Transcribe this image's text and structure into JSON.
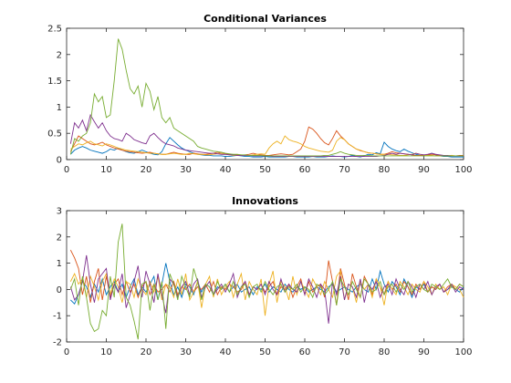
{
  "chart_data": [
    {
      "type": "line",
      "title": "Conditional Variances",
      "xlim": [
        0,
        100
      ],
      "ylim": [
        0,
        2.5
      ],
      "xticks": [
        0,
        10,
        20,
        30,
        40,
        50,
        60,
        70,
        80,
        90,
        100
      ],
      "yticks": [
        0,
        0.5,
        1,
        1.5,
        2,
        2.5
      ],
      "xtick_labels": [
        "0",
        "10",
        "20",
        "30",
        "40",
        "50",
        "60",
        "70",
        "80",
        "90",
        "100"
      ],
      "ytick_labels": [
        "0",
        "0.5",
        "1",
        "1.5",
        "2",
        "2.5"
      ],
      "x_step": 1,
      "series": [
        {
          "color": "#0072BD",
          "values": [
            0.1,
            0.18,
            0.22,
            0.25,
            0.22,
            0.18,
            0.16,
            0.14,
            0.12,
            0.15,
            0.2,
            0.18,
            0.22,
            0.18,
            0.15,
            0.13,
            0.12,
            0.15,
            0.18,
            0.15,
            0.12,
            0.1,
            0.09,
            0.15,
            0.3,
            0.42,
            0.35,
            0.28,
            0.22,
            0.18,
            0.15,
            0.12,
            0.1,
            0.09,
            0.08,
            0.08,
            0.07,
            0.07,
            0.07,
            0.06,
            0.06,
            0.07,
            0.08,
            0.07,
            0.06,
            0.06,
            0.05,
            0.05,
            0.05,
            0.06,
            0.05,
            0.05,
            0.05,
            0.05,
            0.05,
            0.06,
            0.06,
            0.05,
            0.05,
            0.05,
            0.05,
            0.06,
            0.05,
            0.05,
            0.05,
            0.06,
            0.07,
            0.06,
            0.06,
            0.05,
            0.06,
            0.08,
            0.06,
            0.05,
            0.07,
            0.1,
            0.09,
            0.13,
            0.11,
            0.33,
            0.25,
            0.2,
            0.17,
            0.15,
            0.2,
            0.16,
            0.13,
            0.1,
            0.08,
            0.07,
            0.09,
            0.12,
            0.09,
            0.07,
            0.06,
            0.06,
            0.05,
            0.05,
            0.05,
            0.05
          ]
        },
        {
          "color": "#D95319",
          "values": [
            0.15,
            0.3,
            0.45,
            0.4,
            0.35,
            0.3,
            0.28,
            0.3,
            0.33,
            0.28,
            0.25,
            0.22,
            0.2,
            0.18,
            0.16,
            0.15,
            0.14,
            0.13,
            0.12,
            0.13,
            0.14,
            0.12,
            0.11,
            0.1,
            0.1,
            0.12,
            0.14,
            0.12,
            0.11,
            0.1,
            0.1,
            0.12,
            0.11,
            0.1,
            0.1,
            0.11,
            0.12,
            0.14,
            0.12,
            0.11,
            0.1,
            0.09,
            0.09,
            0.08,
            0.09,
            0.1,
            0.12,
            0.1,
            0.09,
            0.08,
            0.08,
            0.09,
            0.1,
            0.11,
            0.1,
            0.09,
            0.1,
            0.15,
            0.2,
            0.35,
            0.62,
            0.58,
            0.5,
            0.4,
            0.32,
            0.28,
            0.4,
            0.55,
            0.45,
            0.38,
            0.3,
            0.25,
            0.2,
            0.17,
            0.15,
            0.13,
            0.12,
            0.11,
            0.1,
            0.1,
            0.12,
            0.15,
            0.13,
            0.12,
            0.11,
            0.1,
            0.09,
            0.08,
            0.08,
            0.08,
            0.09,
            0.1,
            0.09,
            0.08,
            0.08,
            0.07,
            0.07,
            0.07,
            0.08,
            0.08
          ]
        },
        {
          "color": "#EDB120",
          "values": [
            0.2,
            0.25,
            0.3,
            0.28,
            0.32,
            0.35,
            0.3,
            0.28,
            0.26,
            0.3,
            0.28,
            0.25,
            0.22,
            0.2,
            0.18,
            0.17,
            0.16,
            0.15,
            0.14,
            0.13,
            0.12,
            0.12,
            0.11,
            0.1,
            0.1,
            0.11,
            0.12,
            0.11,
            0.1,
            0.1,
            0.12,
            0.11,
            0.1,
            0.1,
            0.09,
            0.09,
            0.1,
            0.11,
            0.12,
            0.1,
            0.09,
            0.08,
            0.08,
            0.09,
            0.08,
            0.08,
            0.09,
            0.1,
            0.11,
            0.1,
            0.22,
            0.3,
            0.35,
            0.3,
            0.45,
            0.38,
            0.35,
            0.33,
            0.3,
            0.25,
            0.22,
            0.2,
            0.18,
            0.16,
            0.15,
            0.14,
            0.18,
            0.35,
            0.42,
            0.38,
            0.3,
            0.25,
            0.2,
            0.18,
            0.15,
            0.13,
            0.12,
            0.11,
            0.1,
            0.1,
            0.1,
            0.09,
            0.09,
            0.08,
            0.08,
            0.09,
            0.1,
            0.12,
            0.1,
            0.09,
            0.08,
            0.08,
            0.07,
            0.07,
            0.07,
            0.07,
            0.08,
            0.07,
            0.07,
            0.07
          ]
        },
        {
          "color": "#7E2F8E",
          "values": [
            0.3,
            0.7,
            0.6,
            0.75,
            0.55,
            0.85,
            0.72,
            0.6,
            0.7,
            0.55,
            0.45,
            0.4,
            0.38,
            0.35,
            0.5,
            0.45,
            0.38,
            0.35,
            0.32,
            0.3,
            0.45,
            0.5,
            0.42,
            0.35,
            0.3,
            0.28,
            0.26,
            0.22,
            0.2,
            0.18,
            0.17,
            0.16,
            0.15,
            0.14,
            0.13,
            0.12,
            0.12,
            0.11,
            0.1,
            0.1,
            0.09,
            0.09,
            0.08,
            0.08,
            0.08,
            0.08,
            0.07,
            0.07,
            0.07,
            0.07,
            0.07,
            0.06,
            0.06,
            0.06,
            0.06,
            0.06,
            0.06,
            0.06,
            0.06,
            0.06,
            0.06,
            0.06,
            0.06,
            0.06,
            0.06,
            0.06,
            0.06,
            0.06,
            0.06,
            0.06,
            0.06,
            0.06,
            0.06,
            0.06,
            0.06,
            0.06,
            0.06,
            0.06,
            0.07,
            0.08,
            0.1,
            0.12,
            0.1,
            0.12,
            0.11,
            0.1,
            0.09,
            0.12,
            0.1,
            0.09,
            0.1,
            0.12,
            0.1,
            0.09,
            0.08,
            0.08,
            0.07,
            0.07,
            0.07,
            0.07
          ]
        },
        {
          "color": "#77AC30",
          "values": [
            0.1,
            0.4,
            0.35,
            0.45,
            0.5,
            0.7,
            1.25,
            1.1,
            1.2,
            0.8,
            0.85,
            1.5,
            2.3,
            2.1,
            1.7,
            1.35,
            1.25,
            1.4,
            1.0,
            1.45,
            1.3,
            0.95,
            1.2,
            0.8,
            0.7,
            0.8,
            0.6,
            0.55,
            0.5,
            0.45,
            0.4,
            0.35,
            0.25,
            0.22,
            0.2,
            0.18,
            0.16,
            0.15,
            0.14,
            0.12,
            0.11,
            0.1,
            0.1,
            0.09,
            0.09,
            0.08,
            0.08,
            0.08,
            0.08,
            0.07,
            0.07,
            0.07,
            0.07,
            0.07,
            0.07,
            0.07,
            0.07,
            0.07,
            0.07,
            0.07,
            0.07,
            0.07,
            0.07,
            0.07,
            0.08,
            0.08,
            0.1,
            0.12,
            0.15,
            0.12,
            0.1,
            0.09,
            0.08,
            0.08,
            0.08,
            0.08,
            0.07,
            0.07,
            0.07,
            0.07,
            0.07,
            0.07,
            0.07,
            0.07,
            0.07,
            0.07,
            0.07,
            0.07,
            0.07,
            0.07,
            0.07,
            0.07,
            0.07,
            0.07,
            0.07,
            0.07,
            0.07,
            0.07,
            0.07,
            0.07
          ]
        }
      ]
    },
    {
      "type": "line",
      "title": "Innovations",
      "xlim": [
        0,
        100
      ],
      "ylim": [
        -2,
        3
      ],
      "xticks": [
        0,
        10,
        20,
        30,
        40,
        50,
        60,
        70,
        80,
        90,
        100
      ],
      "yticks": [
        -2,
        -1,
        0,
        1,
        2,
        3
      ],
      "xtick_labels": [
        "0",
        "10",
        "20",
        "30",
        "40",
        "50",
        "60",
        "70",
        "80",
        "90",
        "100"
      ],
      "ytick_labels": [
        "-2",
        "-1",
        "0",
        "1",
        "2",
        "3"
      ],
      "x_step": 1,
      "series": [
        {
          "color": "#0072BD",
          "values": [
            -0.4,
            -0.55,
            -0.2,
            0.3,
            0.1,
            -0.3,
            0.2,
            -0.1,
            0.4,
            -0.2,
            0.1,
            0.3,
            -0.1,
            0.2,
            -0.3,
            0.1,
            0.4,
            -0.2,
            0.1,
            -0.1,
            0.2,
            0.5,
            -0.4,
            0.2,
            1.0,
            0.3,
            -0.2,
            0.1,
            -0.3,
            0.2,
            0.1,
            -0.2,
            0.3,
            -0.1,
            0.2,
            0.1,
            -0.2,
            0.1,
            0.0,
            0.2,
            -0.1,
            0.1,
            0.2,
            -0.1,
            0.0,
            0.1,
            -0.2,
            0.1,
            0.0,
            0.2,
            -0.1,
            0.1,
            0.0,
            -0.1,
            0.2,
            0.0,
            -0.1,
            0.1,
            0.0,
            0.1,
            -0.1,
            0.0,
            0.1,
            0.0,
            -0.1,
            0.1,
            0.2,
            -0.1,
            0.0,
            0.1,
            0.0,
            -0.1,
            0.1,
            0.2,
            0.0,
            -0.1,
            0.4,
            0.0,
            0.7,
            0.2,
            -0.1,
            0.3,
            0.1,
            -0.2,
            0.4,
            0.1,
            -0.3,
            0.1,
            0.0,
            0.2,
            -0.1,
            0.1,
            0.0,
            0.2,
            -0.1,
            0.0,
            0.1,
            0.0,
            -0.1,
            0.1
          ]
        },
        {
          "color": "#D95319",
          "values": [
            1.5,
            1.2,
            0.8,
            -0.2,
            0.5,
            -0.5,
            0.3,
            0.8,
            -0.4,
            0.5,
            -0.3,
            0.2,
            0.4,
            -0.2,
            0.3,
            -0.1,
            0.2,
            -0.3,
            0.1,
            0.3,
            -0.2,
            0.2,
            -0.1,
            0.0,
            0.2,
            -0.1,
            0.3,
            -0.2,
            0.1,
            0.0,
            0.2,
            -0.1,
            0.1,
            0.0,
            0.2,
            -0.1,
            0.3,
            -0.2,
            0.1,
            0.0,
            0.2,
            0.1,
            -0.1,
            0.0,
            0.3,
            -0.2,
            0.1,
            0.0,
            0.2,
            -0.1,
            0.1,
            0.3,
            -0.2,
            0.1,
            0.0,
            0.2,
            -0.3,
            0.1,
            0.4,
            -0.2,
            0.3,
            -0.1,
            0.1,
            0.2,
            -0.3,
            1.1,
            0.3,
            -0.6,
            0.8,
            0.2,
            -0.4,
            0.6,
            0.1,
            -0.3,
            0.5,
            0.2,
            -0.2,
            0.4,
            0.1,
            -0.2,
            0.3,
            0.0,
            0.2,
            -0.1,
            0.3,
            0.1,
            -0.2,
            0.2,
            0.0,
            0.3,
            -0.1,
            0.1,
            0.0,
            0.2,
            -0.1,
            0.1,
            0.2,
            0.0,
            0.2,
            0.1
          ]
        },
        {
          "color": "#EDB120",
          "values": [
            0.3,
            0.6,
            0.2,
            0.4,
            -0.3,
            0.5,
            0.1,
            -0.4,
            0.3,
            0.6,
            -0.2,
            0.4,
            0.1,
            -0.5,
            0.3,
            0.2,
            -0.3,
            0.4,
            0.0,
            -0.2,
            0.3,
            -0.1,
            0.5,
            -0.4,
            0.2,
            0.1,
            -0.3,
            0.4,
            -0.2,
            0.6,
            -0.4,
            -0.1,
            0.3,
            -0.7,
            0.2,
            0.5,
            -0.3,
            0.4,
            -0.2,
            0.1,
            0.3,
            -0.3,
            0.2,
            0.6,
            -0.4,
            0.3,
            0.0,
            -0.2,
            0.4,
            -1.0,
            0.2,
            0.7,
            -0.5,
            0.3,
            0.1,
            -0.4,
            0.5,
            -0.2,
            0.3,
            0.0,
            -0.3,
            0.4,
            0.1,
            -0.2,
            0.3,
            0.0,
            -0.3,
            0.5,
            0.7,
            -0.4,
            0.2,
            0.1,
            -0.5,
            0.3,
            0.0,
            0.2,
            -0.3,
            0.4,
            0.1,
            -0.6,
            0.3,
            0.0,
            -0.2,
            0.3,
            0.1,
            -0.2,
            0.2,
            0.0,
            -0.1,
            0.3,
            0.1,
            -0.2,
            0.2,
            0.0,
            0.1,
            -0.2,
            0.2,
            0.1,
            0.0,
            -0.3
          ]
        },
        {
          "color": "#7E2F8E",
          "values": [
            0.1,
            -0.4,
            -0.2,
            0.3,
            1.3,
            0.2,
            -0.5,
            0.4,
            0.6,
            0.8,
            -0.4,
            0.2,
            -0.1,
            0.6,
            -0.7,
            -0.2,
            0.3,
            0.9,
            -0.3,
            0.7,
            0.2,
            -0.5,
            0.6,
            -0.2,
            -0.9,
            0.4,
            0.2,
            -0.3,
            0.1,
            0.3,
            -0.2,
            0.2,
            0.4,
            -0.3,
            0.1,
            0.3,
            -0.2,
            0.0,
            0.2,
            -0.1,
            0.2,
            0.6,
            -0.3,
            0.1,
            0.3,
            -0.2,
            0.1,
            0.0,
            0.2,
            -0.2,
            0.3,
            0.0,
            -0.2,
            0.4,
            -0.1,
            0.2,
            0.0,
            -0.1,
            0.3,
            -0.2,
            0.4,
            0.1,
            -0.3,
            0.2,
            0.0,
            -1.3,
            0.3,
            -0.2,
            0.5,
            -0.4,
            0.2,
            0.1,
            -0.3,
            0.4,
            -0.5,
            0.2,
            0.0,
            0.3,
            -0.3,
            0.1,
            0.2,
            -0.2,
            0.4,
            0.0,
            -0.2,
            0.3,
            0.1,
            -0.3,
            0.2,
            0.0,
            0.3,
            -0.2,
            0.1,
            0.2,
            -0.1,
            0.0,
            0.2,
            -0.1,
            0.1,
            0.0
          ]
        },
        {
          "color": "#77AC30",
          "values": [
            0.0,
            0.4,
            -0.6,
            0.5,
            -0.3,
            -1.3,
            -1.6,
            -1.5,
            -0.8,
            -1.0,
            0.5,
            -0.3,
            1.8,
            2.5,
            -0.3,
            -0.6,
            -1.2,
            -1.9,
            0.2,
            0.3,
            -0.8,
            0.2,
            -0.4,
            0.3,
            -1.5,
            0.6,
            0.2,
            -0.4,
            0.5,
            0.1,
            -0.3,
            0.8,
            0.3,
            -0.4,
            0.2,
            0.1,
            -0.2,
            0.3,
            0.0,
            0.2,
            -0.1,
            0.3,
            -0.2,
            0.1,
            0.2,
            -0.3,
            0.1,
            0.2,
            -0.1,
            0.3,
            0.0,
            -0.2,
            0.1,
            0.2,
            -0.1,
            0.1,
            0.0,
            0.2,
            -0.1,
            0.1,
            0.0,
            -0.3,
            0.2,
            0.1,
            -0.2,
            0.0,
            0.3,
            -0.6,
            0.4,
            0.1,
            -0.2,
            0.3,
            0.0,
            -0.3,
            0.4,
            0.2,
            -0.1,
            0.0,
            0.3,
            -0.2,
            0.1,
            0.2,
            -0.1,
            0.2,
            0.0,
            0.3,
            -0.1,
            0.1,
            0.2,
            0.0,
            -0.1,
            0.2,
            0.1,
            0.0,
            0.2,
            0.4,
            0.1,
            0.0,
            0.2,
            0.1
          ]
        }
      ]
    }
  ]
}
